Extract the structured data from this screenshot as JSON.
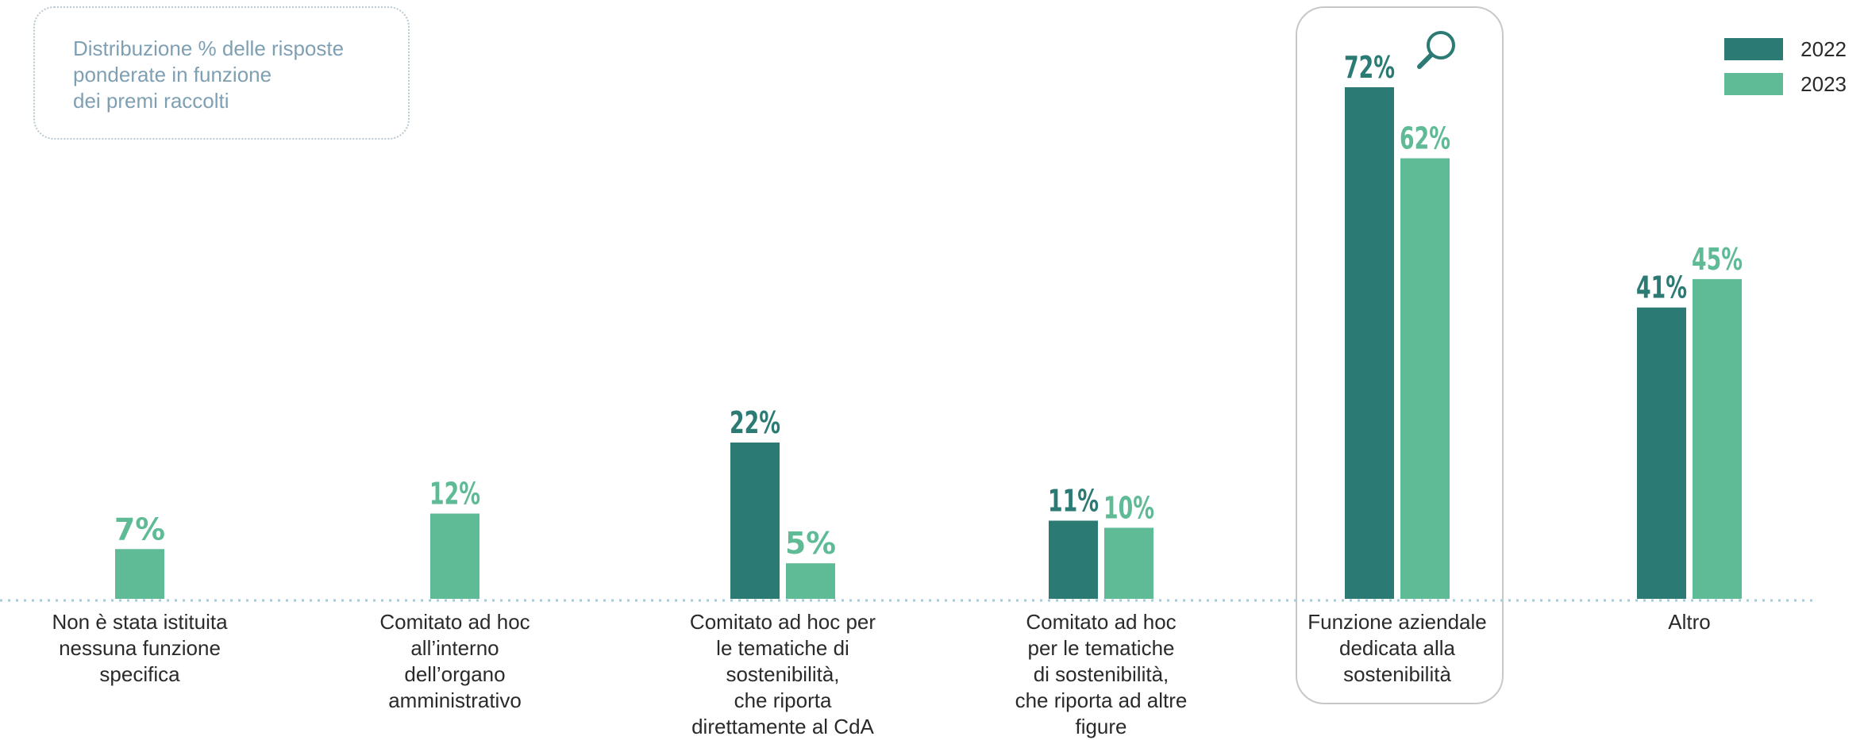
{
  "note": {
    "lines": [
      "Distribuzione % delle risposte",
      "ponderate in funzione",
      "dei premi raccolti"
    ]
  },
  "legend": [
    {
      "label": "2022",
      "color": "#2b7a74"
    },
    {
      "label": "2023",
      "color": "#5fbb95"
    }
  ],
  "icons": {
    "highlight": "search-icon"
  },
  "chart_data": {
    "type": "bar",
    "categories": [
      "Non è stata istituita\nnessuna funzione\nspecifica",
      "Comitato ad hoc\nall’interno\ndell’organo\namministrativo",
      "Comitato ad hoc per\nle tematiche di\nsostenibilità,\nche riporta\ndirettamente al CdA",
      "Comitato ad hoc\nper le tematiche\ndi sostenibilità,\nche riporta ad altre\nfigure",
      "Funzione aziendale\ndedicata alla\nsostenibilità",
      "Altro"
    ],
    "series": [
      {
        "name": "2022",
        "color": "#2b7a74",
        "values": [
          null,
          null,
          22,
          11,
          72,
          41
        ]
      },
      {
        "name": "2023",
        "color": "#5fbb95",
        "values": [
          7,
          12,
          5,
          10,
          62,
          45
        ]
      }
    ],
    "value_suffix": "%",
    "ylim": [
      0,
      72
    ],
    "grid": false,
    "baseline": "dotted",
    "legend_position": "top-right",
    "highlighted_category_index": 4
  }
}
